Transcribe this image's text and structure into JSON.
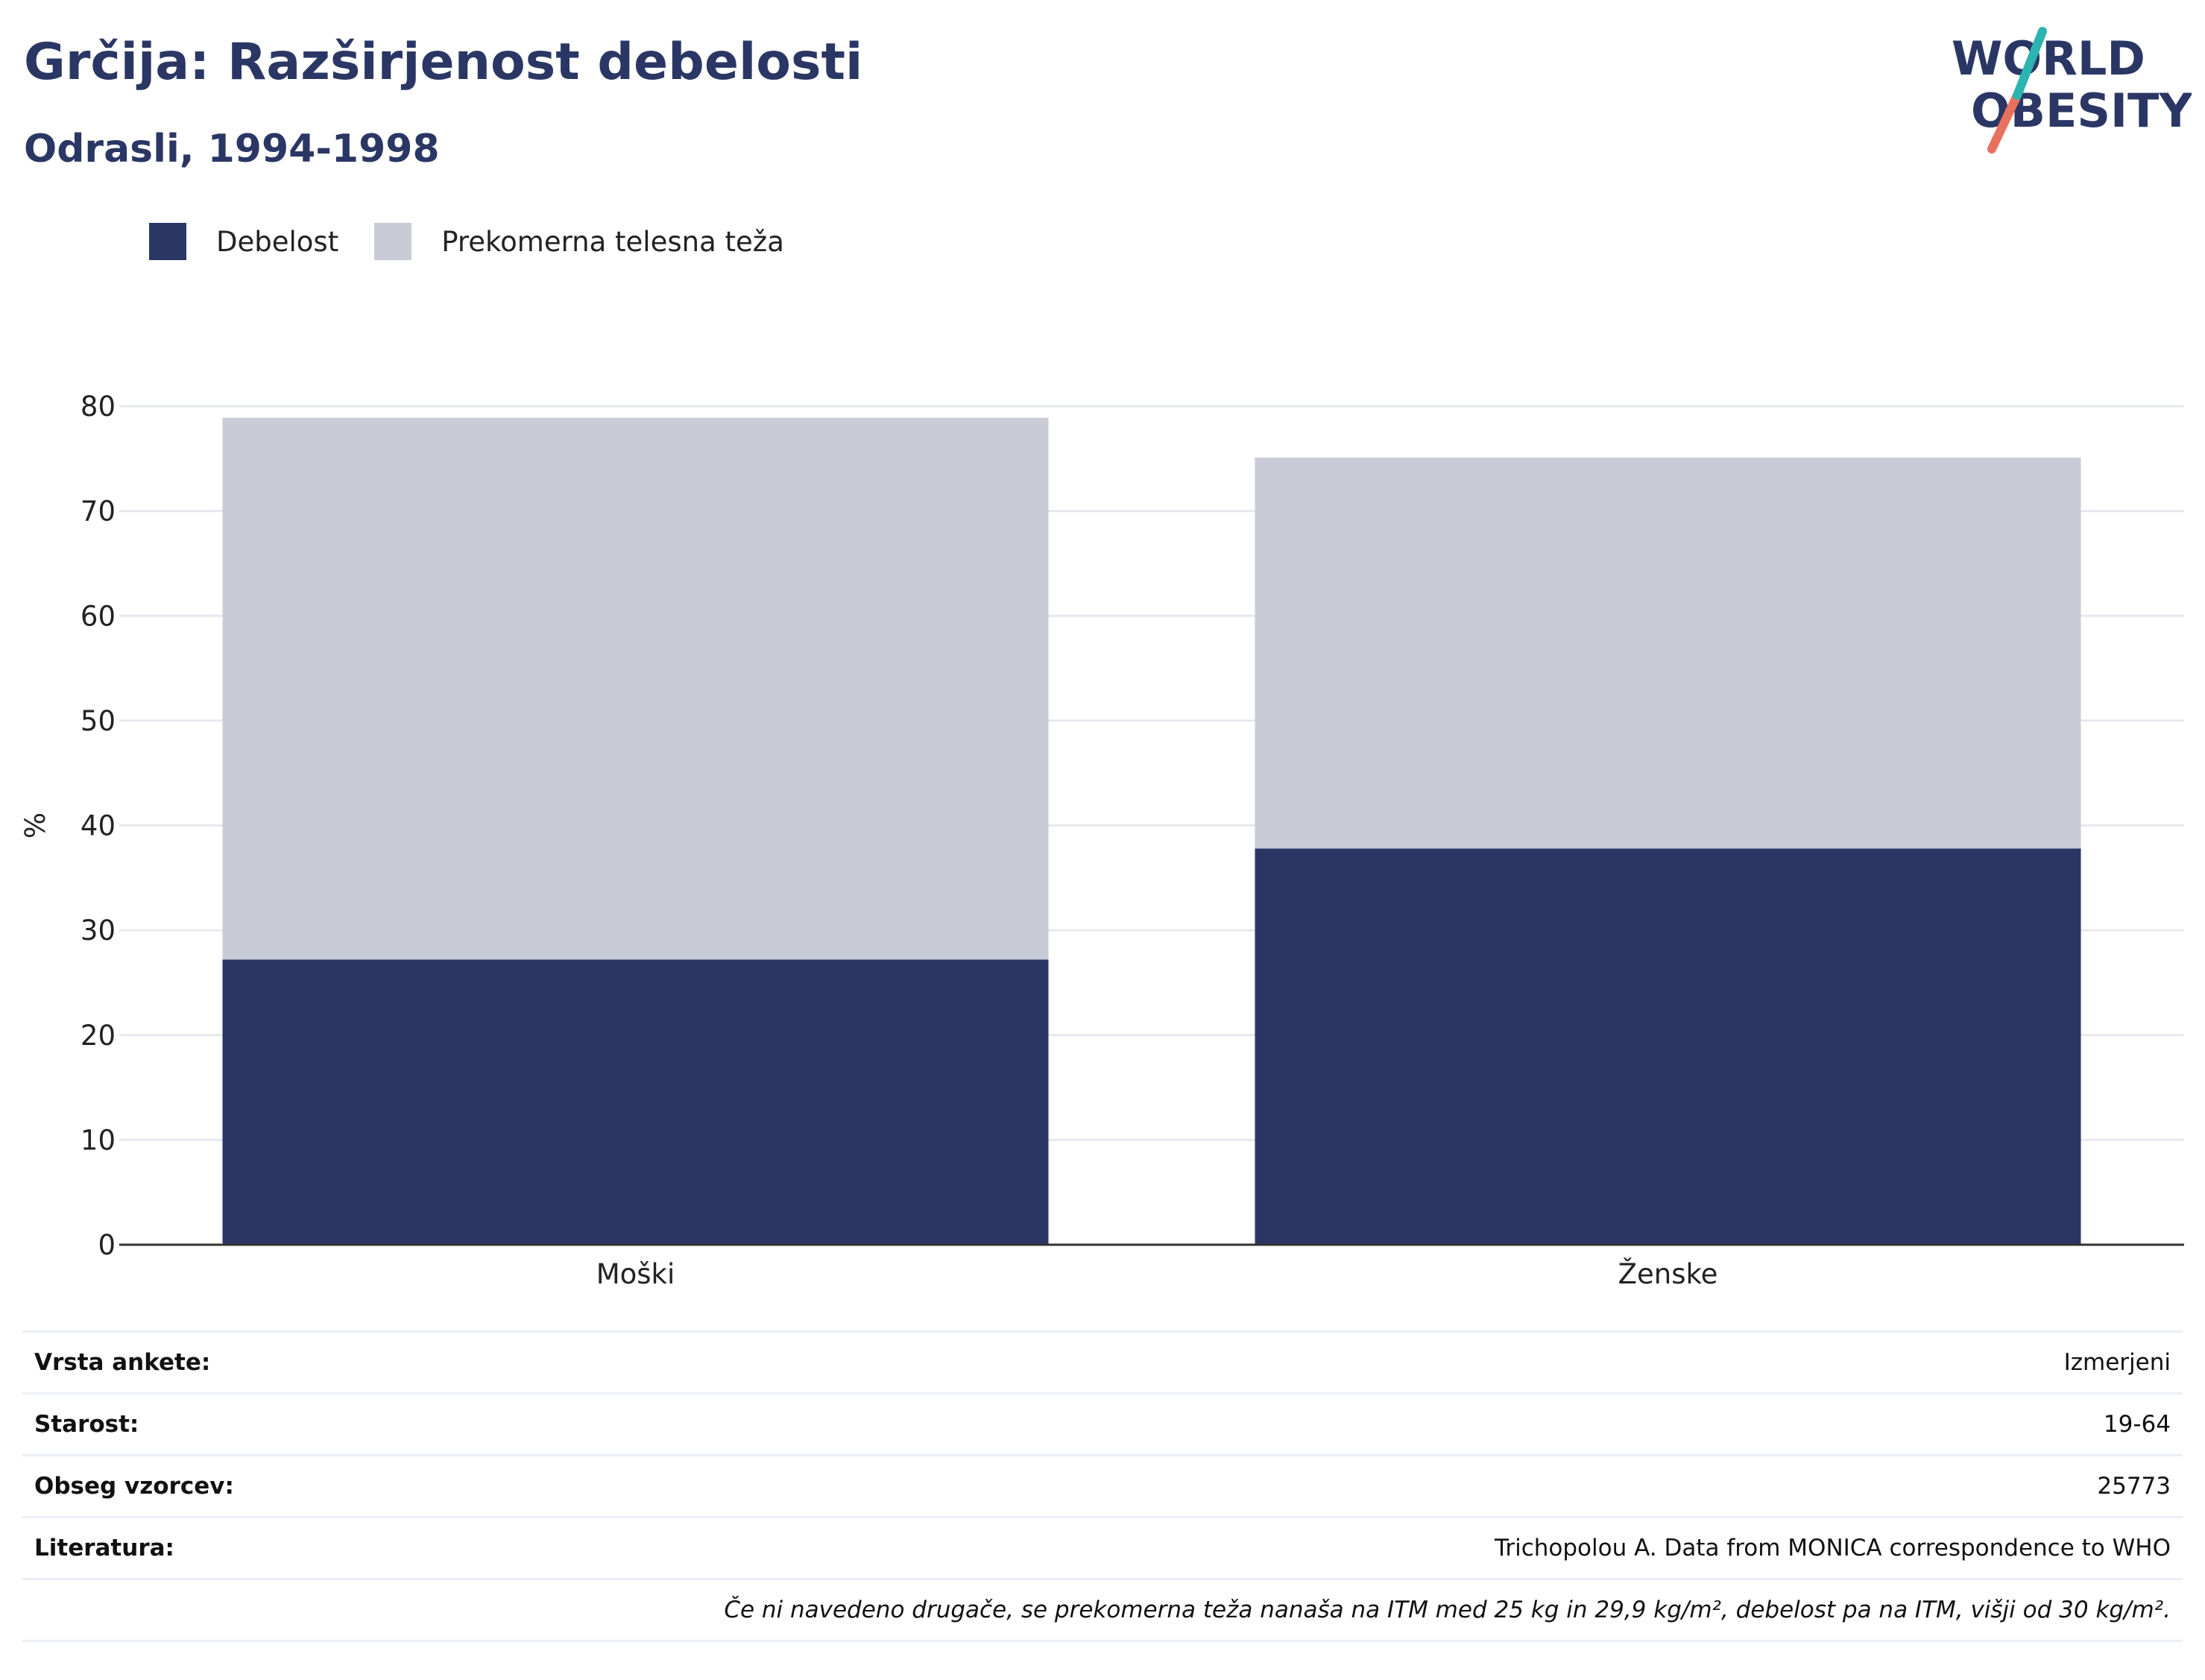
{
  "title": "Grčija: Razširjenost debelosti",
  "subtitle": "Odrasli, 1994-1998",
  "logo": {
    "line1": "WORLD",
    "line2": "OBESITY",
    "accent_teal": "#2bb4b0",
    "accent_coral": "#e8715e"
  },
  "colors": {
    "obesity": "#2a3765",
    "overweight": "#c9cbd7",
    "gridline": "#e7e8ee",
    "axis": "#333333"
  },
  "chart_data": {
    "type": "bar",
    "stacked": true,
    "categories": [
      "Moški",
      "Ženske"
    ],
    "series": [
      {
        "name": "Debelost",
        "values": [
          27.2,
          37.8
        ]
      },
      {
        "name": "Prekomerna telesna teža",
        "values": [
          51.7,
          37.3
        ]
      }
    ],
    "ylabel": "%",
    "xlabel": "",
    "ylim": [
      0,
      80
    ],
    "yticks": [
      0,
      10,
      20,
      30,
      40,
      50,
      60,
      70,
      80
    ],
    "grid": true,
    "legend": "top-left"
  },
  "info": [
    {
      "label": "Vrsta ankete:",
      "value": "Izmerjeni"
    },
    {
      "label": "Starost:",
      "value": "19-64"
    },
    {
      "label": "Obseg vzorcev:",
      "value": "25773"
    },
    {
      "label": "Literatura:",
      "value": "Trichopolou A. Data from MONICA correspondence to WHO"
    }
  ],
  "note": "Če ni navedeno drugače, se prekomerna teža nanaša na ITM med 25 kg in 29,9 kg/m², debelost pa na ITM, višji od 30 kg/m²."
}
